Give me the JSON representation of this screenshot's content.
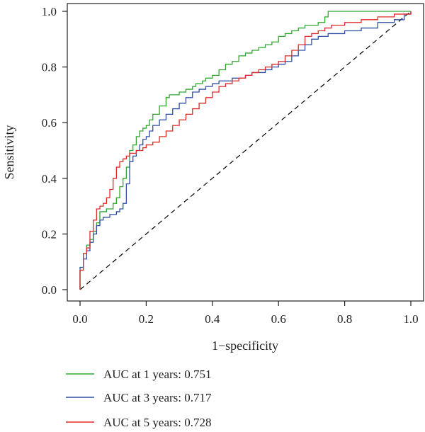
{
  "chart_data": {
    "type": "line",
    "title": "",
    "xlabel": "1−specificity",
    "ylabel": "Sensitivity",
    "xlim": [
      0,
      1
    ],
    "ylim": [
      0,
      1
    ],
    "x_ticks": [
      "0.0",
      "0.2",
      "0.4",
      "0.6",
      "0.8",
      "1.0"
    ],
    "y_ticks": [
      "0.0",
      "0.2",
      "0.4",
      "0.6",
      "0.8",
      "1.0"
    ],
    "grid": false,
    "legend_position": "bottom-left",
    "reference_line": {
      "x": [
        0,
        1
      ],
      "y": [
        0,
        1
      ],
      "style": "dashed",
      "color": "#000000"
    },
    "series": [
      {
        "name": "AUC at 1 years: 0.751",
        "color": "#2ea82e",
        "x": [
          0.0,
          0.0,
          0.01,
          0.01,
          0.02,
          0.02,
          0.03,
          0.04,
          0.05,
          0.06,
          0.06,
          0.08,
          0.1,
          0.11,
          0.12,
          0.13,
          0.14,
          0.15,
          0.15,
          0.16,
          0.17,
          0.18,
          0.19,
          0.2,
          0.21,
          0.22,
          0.24,
          0.26,
          0.27,
          0.29,
          0.3,
          0.32,
          0.34,
          0.35,
          0.37,
          0.38,
          0.4,
          0.42,
          0.44,
          0.46,
          0.48,
          0.5,
          0.52,
          0.54,
          0.56,
          0.58,
          0.6,
          0.62,
          0.64,
          0.66,
          0.68,
          0.7,
          0.72,
          0.74,
          0.75,
          0.77,
          0.8,
          0.9,
          1.0
        ],
        "y": [
          0.0,
          0.07,
          0.1,
          0.13,
          0.15,
          0.16,
          0.18,
          0.21,
          0.24,
          0.26,
          0.28,
          0.29,
          0.31,
          0.33,
          0.37,
          0.4,
          0.44,
          0.47,
          0.5,
          0.52,
          0.55,
          0.57,
          0.58,
          0.59,
          0.61,
          0.63,
          0.66,
          0.69,
          0.7,
          0.7,
          0.71,
          0.72,
          0.73,
          0.74,
          0.75,
          0.76,
          0.77,
          0.79,
          0.81,
          0.82,
          0.84,
          0.85,
          0.86,
          0.87,
          0.88,
          0.89,
          0.91,
          0.92,
          0.93,
          0.94,
          0.95,
          0.95,
          0.96,
          0.98,
          1.0,
          1.0,
          1.0,
          1.0,
          1.0
        ]
      },
      {
        "name": "AUC at 3 years: 0.717",
        "color": "#2f4fa6",
        "x": [
          0.0,
          0.0,
          0.01,
          0.02,
          0.03,
          0.03,
          0.04,
          0.05,
          0.06,
          0.07,
          0.09,
          0.11,
          0.12,
          0.13,
          0.14,
          0.15,
          0.15,
          0.16,
          0.17,
          0.18,
          0.19,
          0.2,
          0.21,
          0.22,
          0.24,
          0.26,
          0.28,
          0.3,
          0.32,
          0.34,
          0.36,
          0.38,
          0.4,
          0.42,
          0.44,
          0.46,
          0.48,
          0.5,
          0.52,
          0.54,
          0.56,
          0.58,
          0.6,
          0.62,
          0.64,
          0.66,
          0.68,
          0.7,
          0.72,
          0.75,
          0.8,
          0.85,
          0.9,
          0.95,
          0.98,
          1.0
        ],
        "y": [
          0.0,
          0.08,
          0.11,
          0.14,
          0.16,
          0.17,
          0.2,
          0.23,
          0.25,
          0.26,
          0.27,
          0.28,
          0.29,
          0.31,
          0.38,
          0.43,
          0.46,
          0.48,
          0.5,
          0.52,
          0.54,
          0.55,
          0.57,
          0.59,
          0.61,
          0.63,
          0.65,
          0.67,
          0.69,
          0.71,
          0.72,
          0.73,
          0.74,
          0.75,
          0.75,
          0.76,
          0.76,
          0.77,
          0.78,
          0.78,
          0.79,
          0.8,
          0.81,
          0.82,
          0.84,
          0.86,
          0.88,
          0.9,
          0.91,
          0.92,
          0.93,
          0.94,
          0.96,
          0.97,
          0.99,
          1.0
        ]
      },
      {
        "name": "AUC at 5 years: 0.728",
        "color": "#e02a2a",
        "x": [
          0.0,
          0.0,
          0.01,
          0.01,
          0.02,
          0.03,
          0.03,
          0.04,
          0.05,
          0.06,
          0.07,
          0.08,
          0.09,
          0.1,
          0.11,
          0.12,
          0.13,
          0.14,
          0.15,
          0.16,
          0.17,
          0.18,
          0.19,
          0.2,
          0.22,
          0.24,
          0.26,
          0.28,
          0.3,
          0.32,
          0.34,
          0.36,
          0.38,
          0.4,
          0.42,
          0.44,
          0.46,
          0.48,
          0.5,
          0.52,
          0.54,
          0.56,
          0.58,
          0.6,
          0.62,
          0.64,
          0.66,
          0.68,
          0.7,
          0.72,
          0.74,
          0.76,
          0.8,
          0.85,
          0.9,
          0.95,
          1.0
        ],
        "y": [
          0.0,
          0.07,
          0.1,
          0.13,
          0.15,
          0.17,
          0.21,
          0.25,
          0.29,
          0.3,
          0.31,
          0.33,
          0.36,
          0.4,
          0.44,
          0.46,
          0.47,
          0.48,
          0.49,
          0.49,
          0.5,
          0.5,
          0.51,
          0.52,
          0.53,
          0.55,
          0.57,
          0.59,
          0.61,
          0.63,
          0.65,
          0.67,
          0.69,
          0.71,
          0.73,
          0.74,
          0.75,
          0.76,
          0.77,
          0.78,
          0.79,
          0.8,
          0.81,
          0.82,
          0.84,
          0.86,
          0.88,
          0.91,
          0.92,
          0.93,
          0.94,
          0.95,
          0.96,
          0.97,
          0.98,
          0.99,
          1.0
        ]
      }
    ]
  }
}
